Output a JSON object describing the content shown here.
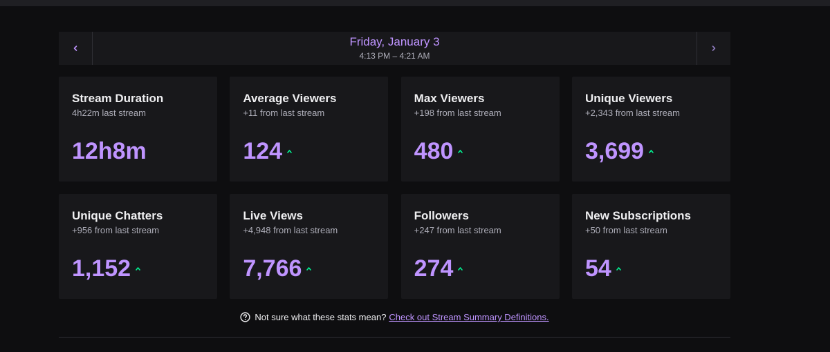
{
  "date_nav": {
    "title": "Friday, January 3",
    "time_range": "4:13 PM – 4:21 AM",
    "prev_icon": "chevron-left-icon",
    "next_icon": "chevron-right-icon"
  },
  "stats": [
    {
      "title": "Stream Duration",
      "sub": "4h22m last stream",
      "value": "12h8m",
      "trend": "none"
    },
    {
      "title": "Average Viewers",
      "sub": "+11 from last stream",
      "value": "124",
      "trend": "up"
    },
    {
      "title": "Max Viewers",
      "sub": "+198 from last stream",
      "value": "480",
      "trend": "up"
    },
    {
      "title": "Unique Viewers",
      "sub": "+2,343 from last stream",
      "value": "3,699",
      "trend": "up"
    },
    {
      "title": "Unique Chatters",
      "sub": "+956 from last stream",
      "value": "1,152",
      "trend": "up"
    },
    {
      "title": "Live Views",
      "sub": "+4,948 from last stream",
      "value": "7,766",
      "trend": "up"
    },
    {
      "title": "Followers",
      "sub": "+247 from last stream",
      "value": "274",
      "trend": "up"
    },
    {
      "title": "New Subscriptions",
      "sub": "+50 from last stream",
      "value": "54",
      "trend": "up"
    }
  ],
  "footer": {
    "question": "Not sure what these stats mean?",
    "link": "Check out Stream Summary Definitions."
  },
  "colors": {
    "accent": "#bf94ff",
    "trend_up": "#00f593",
    "card_bg": "#18181b",
    "page_bg": "#0e0e10"
  }
}
